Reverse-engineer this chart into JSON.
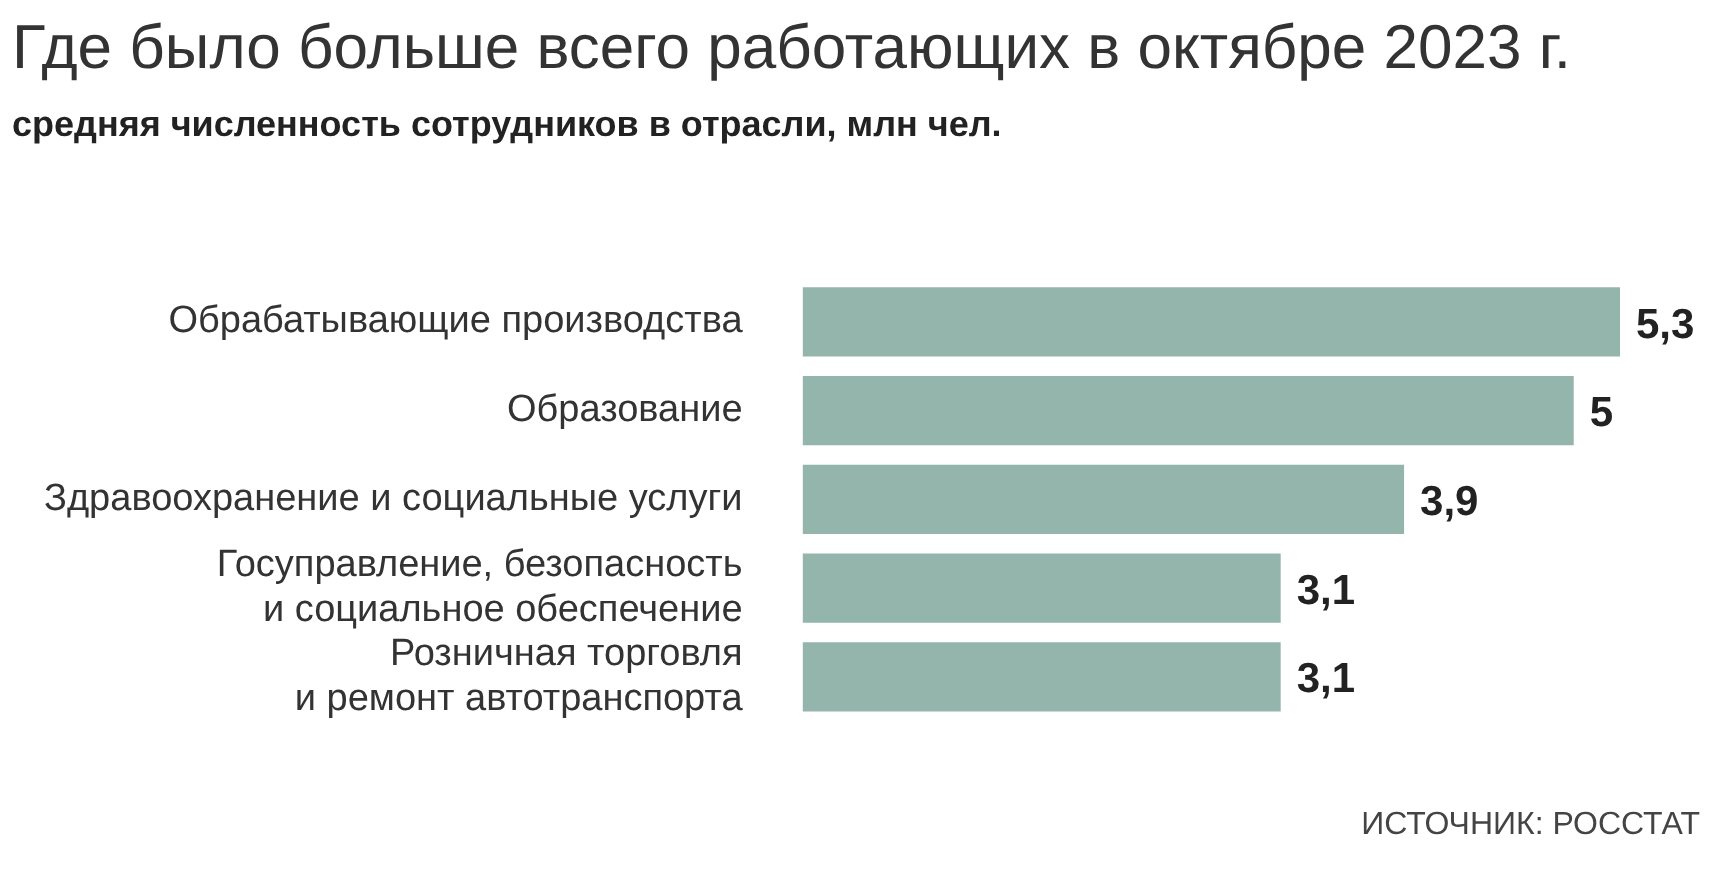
{
  "chart_data": {
    "type": "bar",
    "orientation": "horizontal",
    "title": "Где было больше всего работающих в октябре 2023 г.",
    "subtitle": "средняя численность сотрудников в отрасли, млн чел.",
    "categories": [
      "Обрабатывающие производства",
      "Образование",
      "Здравоохранение и социальные услуги",
      "Госуправление, безопасность\nи социальное обеспечение",
      "Розничная торговля\nи ремонт автотранспорта"
    ],
    "values": [
      5.3,
      5,
      3.9,
      3.1,
      3.1
    ],
    "value_labels": [
      "5,3",
      "5",
      "3,9",
      "3,1",
      "3,1"
    ],
    "color": "#93b5ab",
    "annotations": [
      "ИСТОЧНИК: РОССТАТ"
    ]
  }
}
